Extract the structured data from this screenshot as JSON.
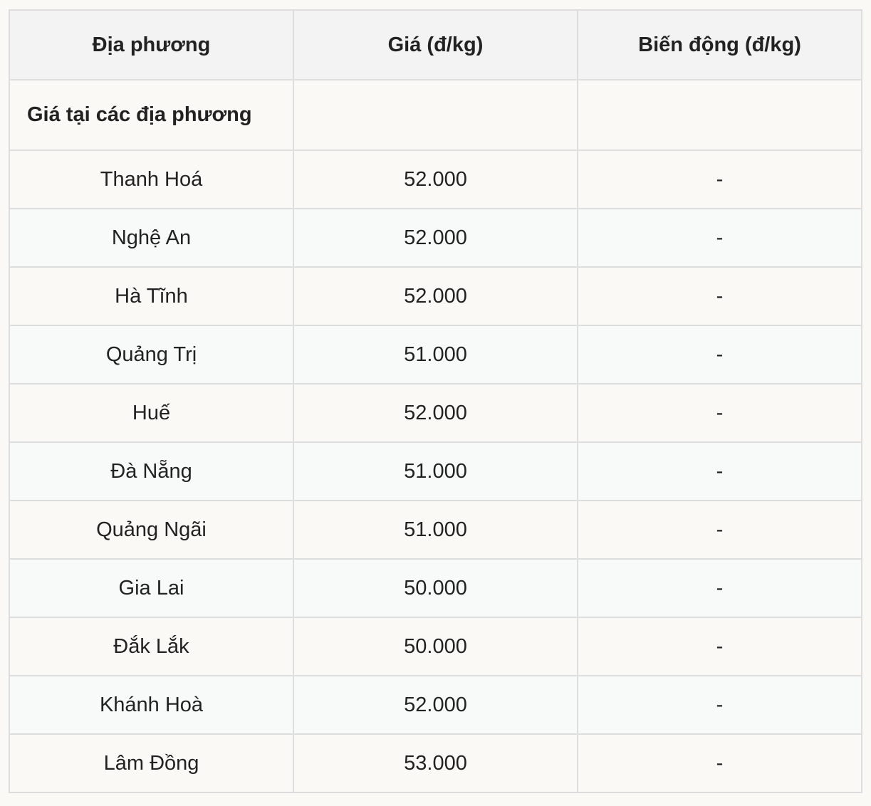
{
  "table": {
    "headers": [
      "Địa phương",
      "Giá (đ/kg)",
      "Biến động (đ/kg)"
    ],
    "section_label": "Giá tại các địa phương",
    "rows": [
      {
        "region": "Thanh Hoá",
        "price": "52.000",
        "change": "-"
      },
      {
        "region": "Nghệ An",
        "price": "52.000",
        "change": "-"
      },
      {
        "region": "Hà Tĩnh",
        "price": "52.000",
        "change": "-"
      },
      {
        "region": "Quảng Trị",
        "price": "51.000",
        "change": "-"
      },
      {
        "region": "Huế",
        "price": "52.000",
        "change": "-"
      },
      {
        "region": "Đà Nẵng",
        "price": "51.000",
        "change": "-"
      },
      {
        "region": "Quảng Ngãi",
        "price": "51.000",
        "change": "-"
      },
      {
        "region": "Gia Lai",
        "price": "50.000",
        "change": "-"
      },
      {
        "region": "Đắk Lắk",
        "price": "50.000",
        "change": "-"
      },
      {
        "region": "Khánh Hoà",
        "price": "52.000",
        "change": "-"
      },
      {
        "region": "Lâm Đồng",
        "price": "53.000",
        "change": "-"
      }
    ]
  }
}
